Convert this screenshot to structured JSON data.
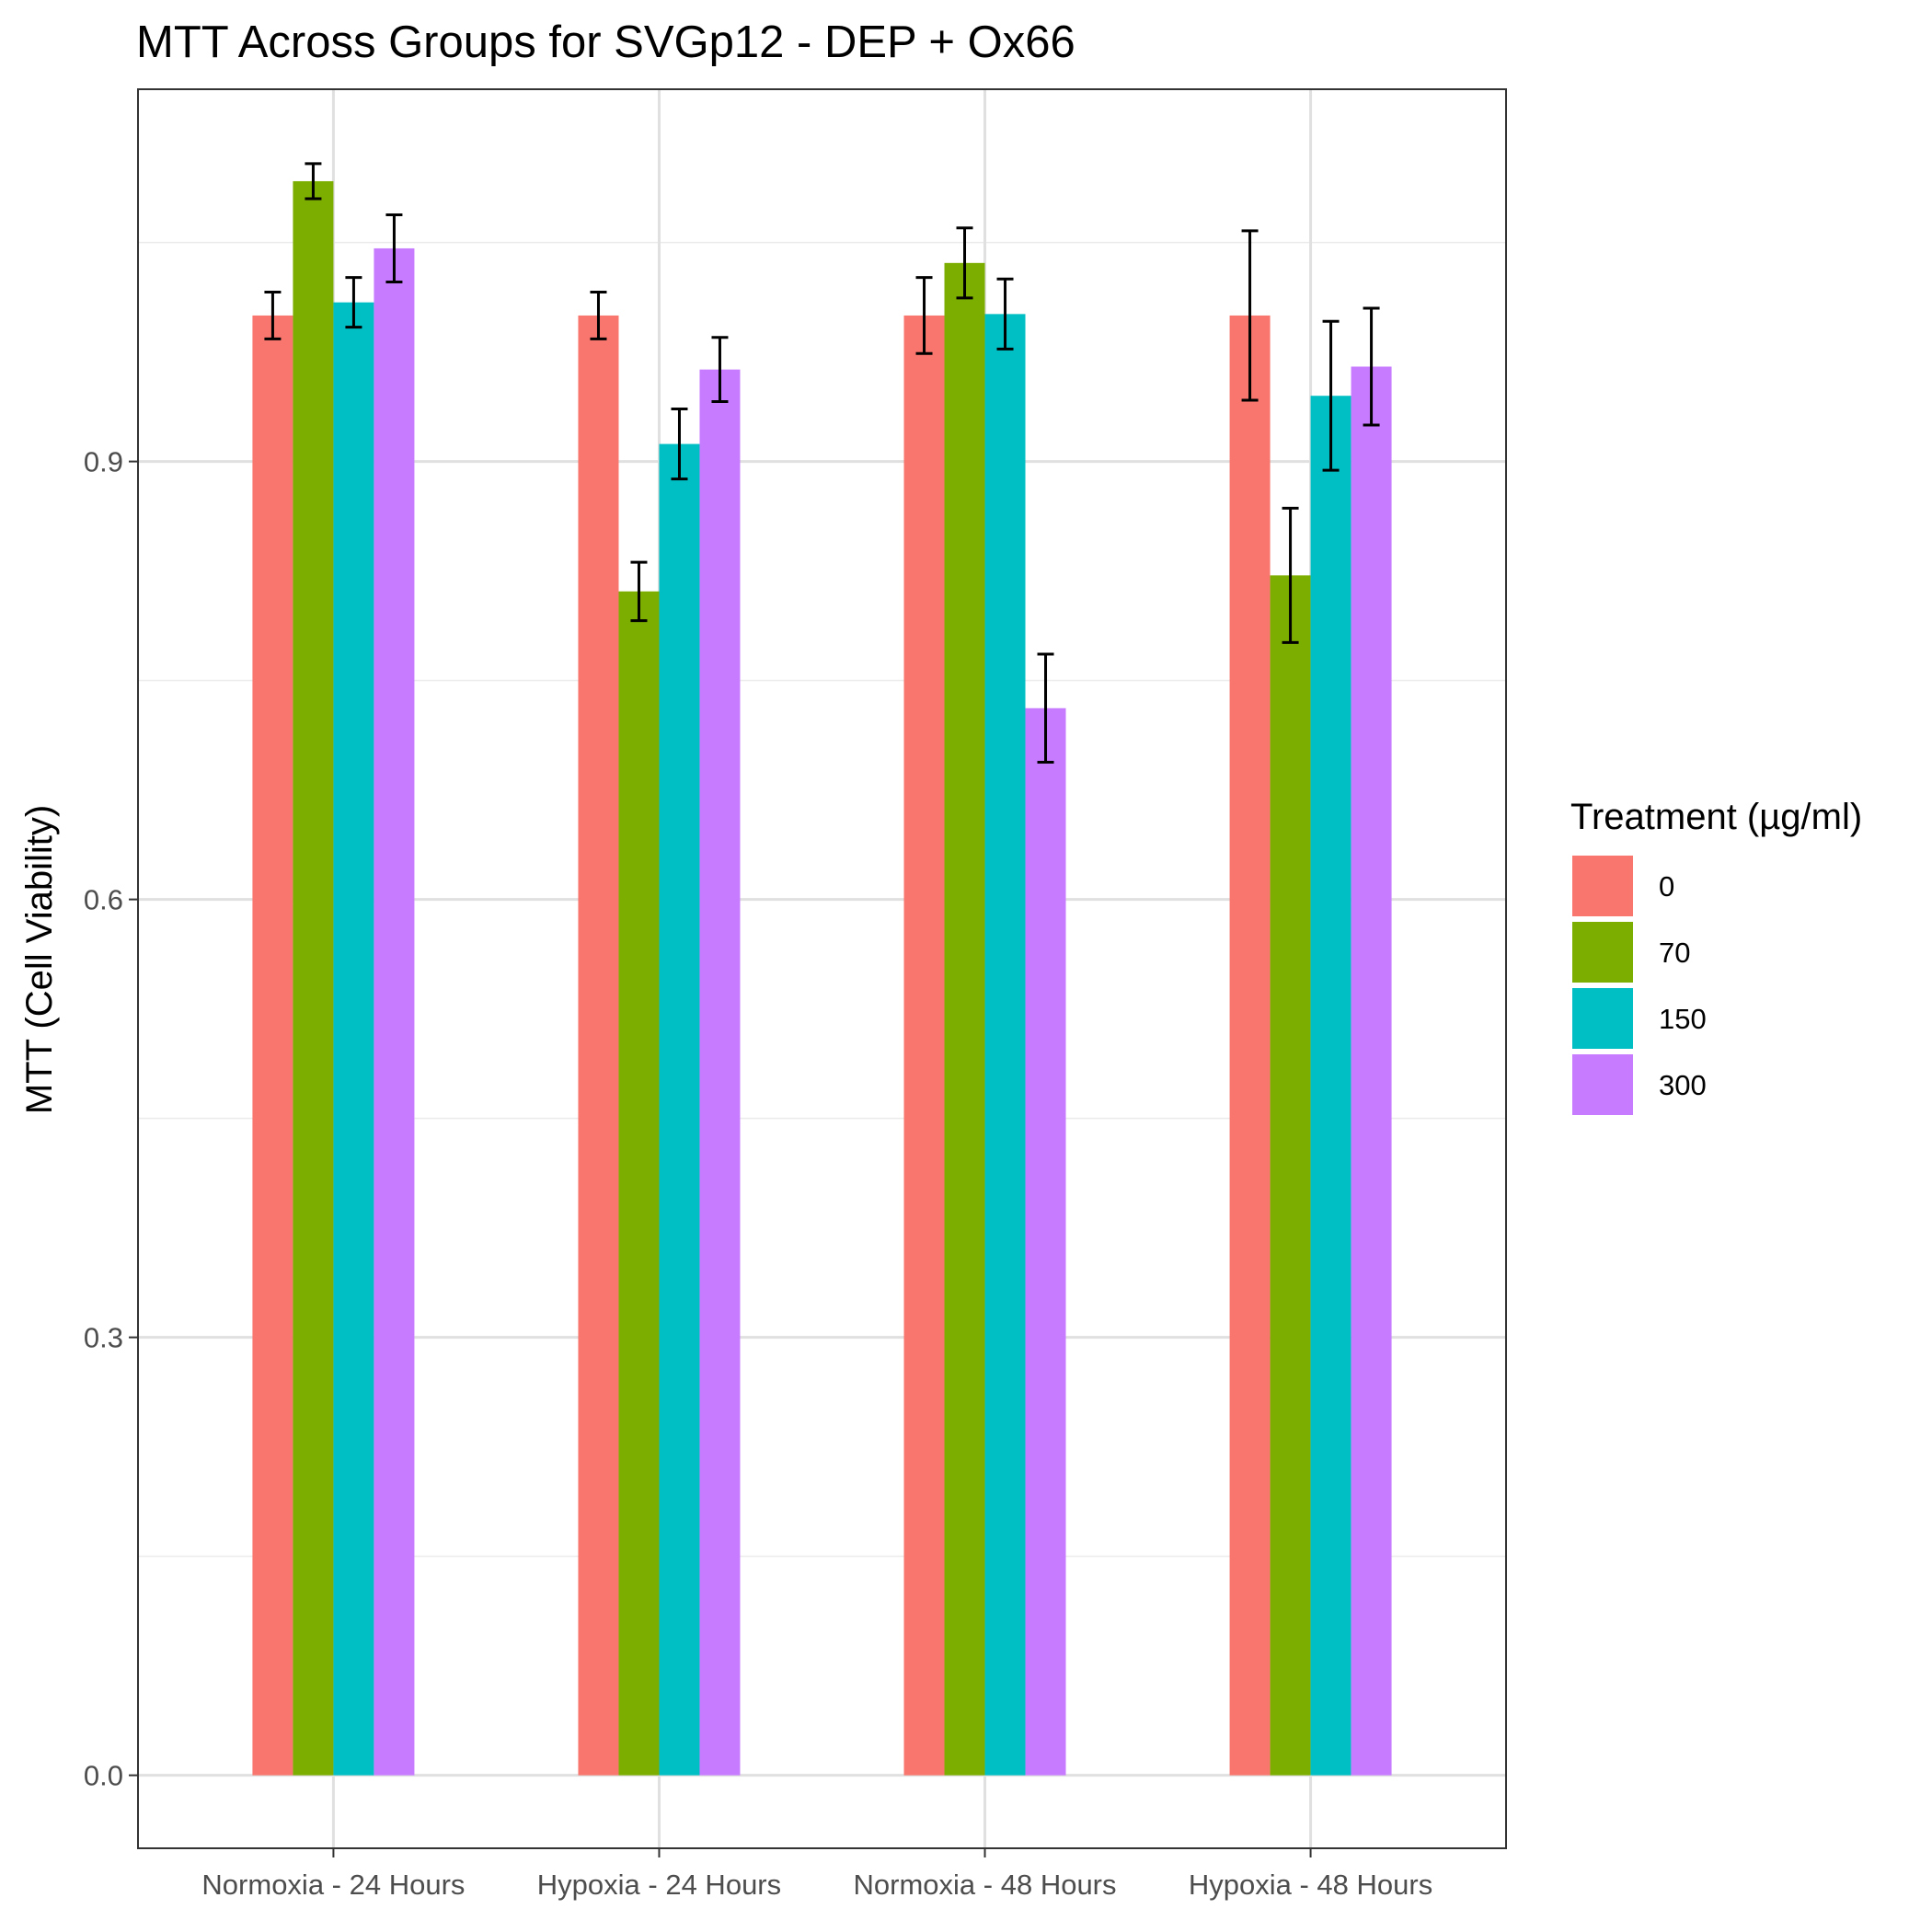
{
  "chart_data": {
    "type": "bar",
    "title": "MTT Across Groups for SVGp12 - DEP + Ox66",
    "xlabel": "",
    "ylabel": "MTT (Cell Viability)",
    "ylim": [
      -0.05,
      1.155
    ],
    "yticks": [
      "0.0",
      "0.3",
      "0.6",
      "0.9"
    ],
    "ytick_values": [
      0.0,
      0.3,
      0.6,
      0.9
    ],
    "grid": true,
    "categories": [
      "Normoxia - 24 Hours",
      "Hypoxia - 24 Hours",
      "Normoxia - 48 Hours",
      "Hypoxia - 48 Hours"
    ],
    "legend": {
      "title": "Treatment (µg/ml)",
      "position": "right"
    },
    "series": [
      {
        "name": "0",
        "color": "#F8766D",
        "values": [
          1.0,
          1.0,
          1.0,
          1.0
        ],
        "errors": [
          0.016,
          0.016,
          0.026,
          0.058
        ]
      },
      {
        "name": "70",
        "color": "#7CAE00",
        "values": [
          1.092,
          0.811,
          1.036,
          0.822
        ],
        "errors": [
          0.012,
          0.02,
          0.024,
          0.046
        ]
      },
      {
        "name": "150",
        "color": "#00BFC4",
        "values": [
          1.009,
          0.912,
          1.001,
          0.945
        ],
        "errors": [
          0.017,
          0.024,
          0.024,
          0.051
        ]
      },
      {
        "name": "300",
        "color": "#C77CFF",
        "values": [
          1.046,
          0.963,
          0.731,
          0.965
        ],
        "errors": [
          0.023,
          0.022,
          0.037,
          0.04
        ]
      }
    ]
  }
}
